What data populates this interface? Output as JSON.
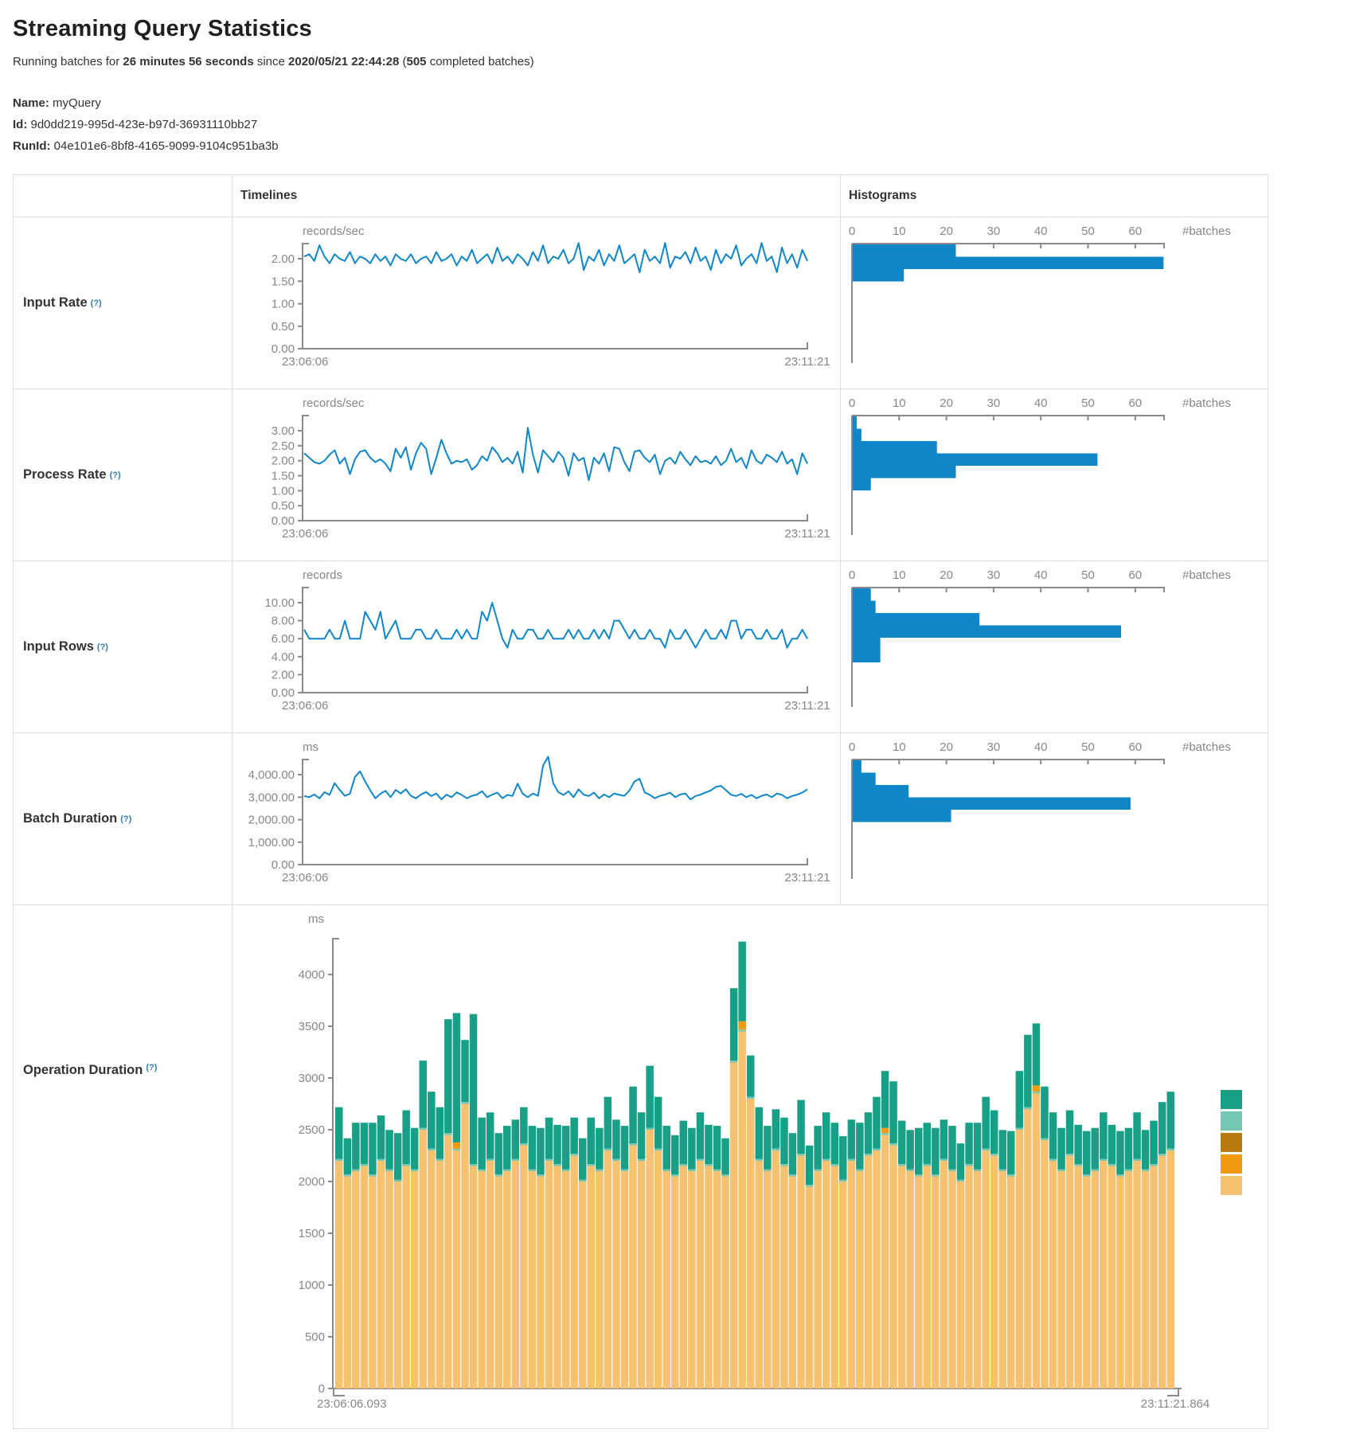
{
  "header": {
    "title": "Streaming Query Statistics",
    "sub": {
      "prefix": "Running batches for ",
      "duration": "26 minutes 56 seconds",
      "mid": " since ",
      "time": "2020/05/21 22:44:28",
      "paren": " (",
      "count": "505",
      "suffix": " completed batches)"
    },
    "name_label": "Name:",
    "name_value": "myQuery",
    "id_label": "Id:",
    "id_value": "9d0dd219-995d-423e-b97d-36931110bb27",
    "runid_label": "RunId:",
    "runid_value": "04e101e6-8bf8-4165-9099-9104c951ba3b"
  },
  "table": {
    "columns": {
      "timelines": "Timelines",
      "histograms": "Histograms"
    },
    "rows_meta": [
      {
        "label": "Input Rate",
        "help": "(?)"
      },
      {
        "label": "Process Rate",
        "help": "(?)"
      },
      {
        "label": "Input Rows",
        "help": "(?)"
      },
      {
        "label": "Batch Duration",
        "help": "(?)"
      },
      {
        "label": "Operation Duration",
        "help": "(?)"
      }
    ]
  },
  "colors": {
    "line": "#0f86c8",
    "axis": "#8a8a8a",
    "tick_text": "#878787",
    "teal": "#17a086",
    "light_teal": "#74c7b2",
    "brown": "#b8790f",
    "orange": "#f29b10",
    "tan": "#f6c270",
    "help": "#2e7cb8"
  },
  "chart_data": [
    {
      "id": "input-rate-timeline",
      "type": "line",
      "unit": "records/sec",
      "x_start": "23:06:06",
      "x_end": "23:11:21",
      "yticks": [
        {
          "v": 2,
          "label": "2.00"
        },
        {
          "v": 1.5,
          "label": "1.50"
        },
        {
          "v": 1,
          "label": "1.00"
        },
        {
          "v": 0.5,
          "label": "0.50"
        },
        {
          "v": 0,
          "label": "0.00"
        }
      ],
      "values": [
        2.05,
        2.1,
        1.95,
        2.3,
        2.05,
        1.9,
        2.1,
        2.0,
        1.95,
        2.15,
        1.9,
        2.05,
        2.0,
        1.9,
        2.1,
        1.95,
        2.05,
        1.85,
        2.1,
        2.0,
        1.95,
        2.1,
        1.9,
        2.0,
        2.05,
        1.9,
        2.15,
        1.95,
        2.0,
        2.1,
        1.85,
        2.05,
        1.95,
        2.2,
        1.9,
        2.0,
        2.1,
        1.9,
        2.25,
        1.95,
        2.05,
        1.9,
        2.1,
        2.0,
        1.85,
        2.15,
        1.95,
        2.3,
        1.9,
        2.05,
        2.0,
        2.2,
        1.9,
        2.0,
        2.35,
        1.75,
        2.05,
        1.95,
        2.2,
        1.85,
        2.1,
        1.95,
        2.3,
        1.9,
        2.0,
        2.1,
        1.7,
        2.2,
        1.95,
        2.05,
        1.9,
        2.35,
        1.8,
        2.05,
        2.0,
        2.15,
        1.9,
        2.25,
        1.95,
        2.05,
        1.75,
        2.2,
        1.9,
        2.1,
        2.0,
        2.3,
        1.85,
        2.0,
        2.1,
        1.9,
        2.35,
        1.95,
        2.05,
        1.7,
        2.25,
        1.9,
        2.1,
        1.8,
        2.2,
        1.95
      ]
    },
    {
      "id": "input-rate-histogram",
      "type": "bar",
      "orientation": "horizontal",
      "xlabel": "#batches",
      "xticks": [
        0,
        10,
        20,
        30,
        40,
        50,
        60
      ],
      "values": [
        22,
        66,
        11
      ]
    },
    {
      "id": "process-rate-timeline",
      "type": "line",
      "unit": "records/sec",
      "x_start": "23:06:06",
      "x_end": "23:11:21",
      "yticks": [
        {
          "v": 3,
          "label": "3.00"
        },
        {
          "v": 2.5,
          "label": "2.50"
        },
        {
          "v": 2,
          "label": "2.00"
        },
        {
          "v": 1.5,
          "label": "1.50"
        },
        {
          "v": 1,
          "label": "1.00"
        },
        {
          "v": 0.5,
          "label": "0.50"
        },
        {
          "v": 0,
          "label": "0.00"
        }
      ],
      "values": [
        2.25,
        2.1,
        1.95,
        1.9,
        2.0,
        2.2,
        2.35,
        1.9,
        2.1,
        1.55,
        2.05,
        2.3,
        2.35,
        2.1,
        1.95,
        2.05,
        1.9,
        1.65,
        2.4,
        2.1,
        2.45,
        1.7,
        2.25,
        2.6,
        2.4,
        1.55,
        2.1,
        2.7,
        2.25,
        1.9,
        2.0,
        1.95,
        2.05,
        1.7,
        1.85,
        2.15,
        2.0,
        2.45,
        2.25,
        1.95,
        2.1,
        1.9,
        2.3,
        1.6,
        3.1,
        2.2,
        1.6,
        2.35,
        2.15,
        1.95,
        2.3,
        2.1,
        1.5,
        2.25,
        2.0,
        2.1,
        1.35,
        2.1,
        1.9,
        2.25,
        1.65,
        2.45,
        2.4,
        1.95,
        1.65,
        2.3,
        2.35,
        2.1,
        1.95,
        2.2,
        1.55,
        2.0,
        2.1,
        1.9,
        2.3,
        2.05,
        1.85,
        2.15,
        1.95,
        2.0,
        1.9,
        2.15,
        1.85,
        2.0,
        2.4,
        1.95,
        2.1,
        1.75,
        2.35,
        2.0,
        1.9,
        2.2,
        2.1,
        1.95,
        2.3,
        1.9,
        2.05,
        1.55,
        2.25,
        1.9
      ]
    },
    {
      "id": "process-rate-histogram",
      "type": "bar",
      "orientation": "horizontal",
      "xlabel": "#batches",
      "xticks": [
        0,
        10,
        20,
        30,
        40,
        50,
        60
      ],
      "values": [
        1,
        2,
        18,
        52,
        22,
        4
      ]
    },
    {
      "id": "input-rows-timeline",
      "type": "line",
      "unit": "records",
      "x_start": "23:06:06",
      "x_end": "23:11:21",
      "yticks": [
        {
          "v": 10,
          "label": "10.00"
        },
        {
          "v": 8,
          "label": "8.00"
        },
        {
          "v": 6,
          "label": "6.00"
        },
        {
          "v": 4,
          "label": "4.00"
        },
        {
          "v": 2,
          "label": "2.00"
        },
        {
          "v": 0,
          "label": "0.00"
        }
      ],
      "values": [
        7,
        6,
        6,
        6,
        6,
        7,
        6,
        6,
        8,
        6,
        6,
        6,
        9,
        8,
        7,
        9,
        6,
        7,
        8,
        6,
        6,
        6,
        7,
        7,
        6,
        6,
        7,
        6,
        6,
        6,
        7,
        6,
        7,
        6,
        6,
        9,
        8,
        10,
        8,
        6,
        5,
        7,
        6,
        6,
        7,
        7,
        6,
        6,
        7,
        6,
        6,
        6,
        7,
        6,
        7,
        6,
        6,
        7,
        6,
        7,
        6,
        8,
        8,
        7,
        6,
        7,
        6,
        6,
        7,
        6,
        6,
        5,
        7,
        6,
        6,
        7,
        6,
        5,
        6,
        7,
        6,
        6,
        7,
        6,
        8,
        8,
        6,
        7,
        7,
        6,
        6,
        7,
        6,
        6,
        7,
        5,
        6,
        6,
        7,
        6
      ]
    },
    {
      "id": "input-rows-histogram",
      "type": "bar",
      "orientation": "horizontal",
      "xlabel": "#batches",
      "xticks": [
        0,
        10,
        20,
        30,
        40,
        50,
        60
      ],
      "values": [
        4,
        5,
        27,
        57,
        6,
        6
      ]
    },
    {
      "id": "batch-duration-timeline",
      "type": "line",
      "unit": "ms",
      "x_start": "23:06:06",
      "x_end": "23:11:21",
      "yticks": [
        {
          "v": 4000,
          "label": "4,000.00"
        },
        {
          "v": 3000,
          "label": "3,000.00"
        },
        {
          "v": 2000,
          "label": "2,000.00"
        },
        {
          "v": 1000,
          "label": "1,000.00"
        },
        {
          "v": 0,
          "label": "0.00"
        }
      ],
      "values": [
        3050,
        3000,
        3120,
        2950,
        3220,
        3100,
        3620,
        3320,
        3060,
        3150,
        3900,
        4150,
        3700,
        3300,
        2950,
        3150,
        3280,
        3000,
        3320,
        3160,
        3350,
        3060,
        2950,
        3120,
        3230,
        3050,
        3160,
        2900,
        3110,
        3000,
        3210,
        3100,
        2950,
        3060,
        3120,
        3260,
        3000,
        3110,
        3200,
        2950,
        3100,
        3050,
        3600,
        3150,
        3000,
        3160,
        3060,
        4400,
        4800,
        3620,
        3220,
        3100,
        3260,
        3000,
        3350,
        3110,
        3050,
        3200,
        2950,
        3120,
        3000,
        3160,
        3100,
        3060,
        3300,
        3700,
        3820,
        3210,
        3100,
        2950,
        3060,
        3110,
        3200,
        3000,
        3120,
        3160,
        2900,
        3050,
        3110,
        3210,
        3300,
        3460,
        3500,
        3310,
        3100,
        3050,
        3150,
        3000,
        3100,
        2950,
        3060,
        3120,
        3000,
        3160,
        3100,
        2950,
        3050,
        3110,
        3200,
        3350
      ]
    },
    {
      "id": "batch-duration-histogram",
      "type": "bar",
      "orientation": "horizontal",
      "xlabel": "#batches",
      "xticks": [
        0,
        10,
        20,
        30,
        40,
        50,
        60
      ],
      "values": [
        2,
        5,
        12,
        59,
        21
      ]
    },
    {
      "id": "operation-duration",
      "type": "stacked-bar",
      "unit": "ms",
      "x_start": "23:06:06.093",
      "x_end": "23:11:21.864",
      "yticks": [
        0,
        500,
        1000,
        1500,
        2000,
        2500,
        3000,
        3500,
        4000
      ],
      "stack_order": [
        "tan",
        "light_teal",
        "brown",
        "orange",
        "teal"
      ],
      "legend_order": [
        "teal",
        "light_teal",
        "brown",
        "orange",
        "tan"
      ],
      "series": {
        "tan": {
          "color_key": "tan",
          "values": [
            2200,
            2050,
            2100,
            2150,
            2050,
            2200,
            2100,
            2000,
            2150,
            2100,
            2500,
            2300,
            2200,
            2450,
            2300,
            2750,
            2150,
            2100,
            2200,
            2050,
            2100,
            2200,
            2350,
            2100,
            2050,
            2200,
            2150,
            2100,
            2250,
            2000,
            2150,
            2100,
            2300,
            2200,
            2100,
            2350,
            2200,
            2500,
            2300,
            2100,
            2050,
            2150,
            2100,
            2200,
            2150,
            2100,
            2050,
            3150,
            3450,
            2800,
            2200,
            2100,
            2300,
            2150,
            2050,
            2250,
            1950,
            2100,
            2200,
            2150,
            2000,
            2200,
            2100,
            2250,
            2300,
            2450,
            2350,
            2150,
            2100,
            2050,
            2150,
            2050,
            2200,
            2100,
            2000,
            2150,
            2100,
            2300,
            2250,
            2100,
            2050,
            2500,
            2700,
            2850,
            2400,
            2200,
            2100,
            2250,
            2150,
            2050,
            2100,
            2200,
            2150,
            2050,
            2100,
            2200,
            2100,
            2150,
            2250,
            2300
          ]
        },
        "light_teal": {
          "color_key": "light_teal",
          "const": 18
        },
        "brown": {
          "color_key": "brown",
          "const": 0
        },
        "orange": {
          "color_key": "orange",
          "const": 0,
          "overrides": {
            "14": 60,
            "48": 80,
            "65": 50,
            "83": 60
          }
        },
        "teal": {
          "color_key": "teal",
          "values": [
            500,
            350,
            450,
            400,
            500,
            420,
            380,
            450,
            520,
            400,
            650,
            550,
            500,
            1100,
            1250,
            600,
            1450,
            500,
            450,
            400,
            420,
            380,
            350,
            420,
            450,
            400,
            380,
            420,
            350,
            400,
            450,
            400,
            500,
            380,
            420,
            550,
            450,
            600,
            500,
            420,
            380,
            420,
            400,
            450,
            380,
            420,
            350,
            700,
            770,
            400,
            500,
            420,
            380,
            450,
            400,
            520,
            380,
            420,
            450,
            400,
            420,
            380,
            450,
            400,
            500,
            550,
            600,
            420,
            380,
            450,
            400,
            450,
            380,
            420,
            350,
            400,
            450,
            500,
            420,
            380,
            420,
            550,
            700,
            600,
            500,
            450,
            400,
            420,
            380,
            420,
            400,
            450,
            380,
            420,
            400,
            450,
            380,
            420,
            500,
            550
          ]
        }
      }
    }
  ]
}
